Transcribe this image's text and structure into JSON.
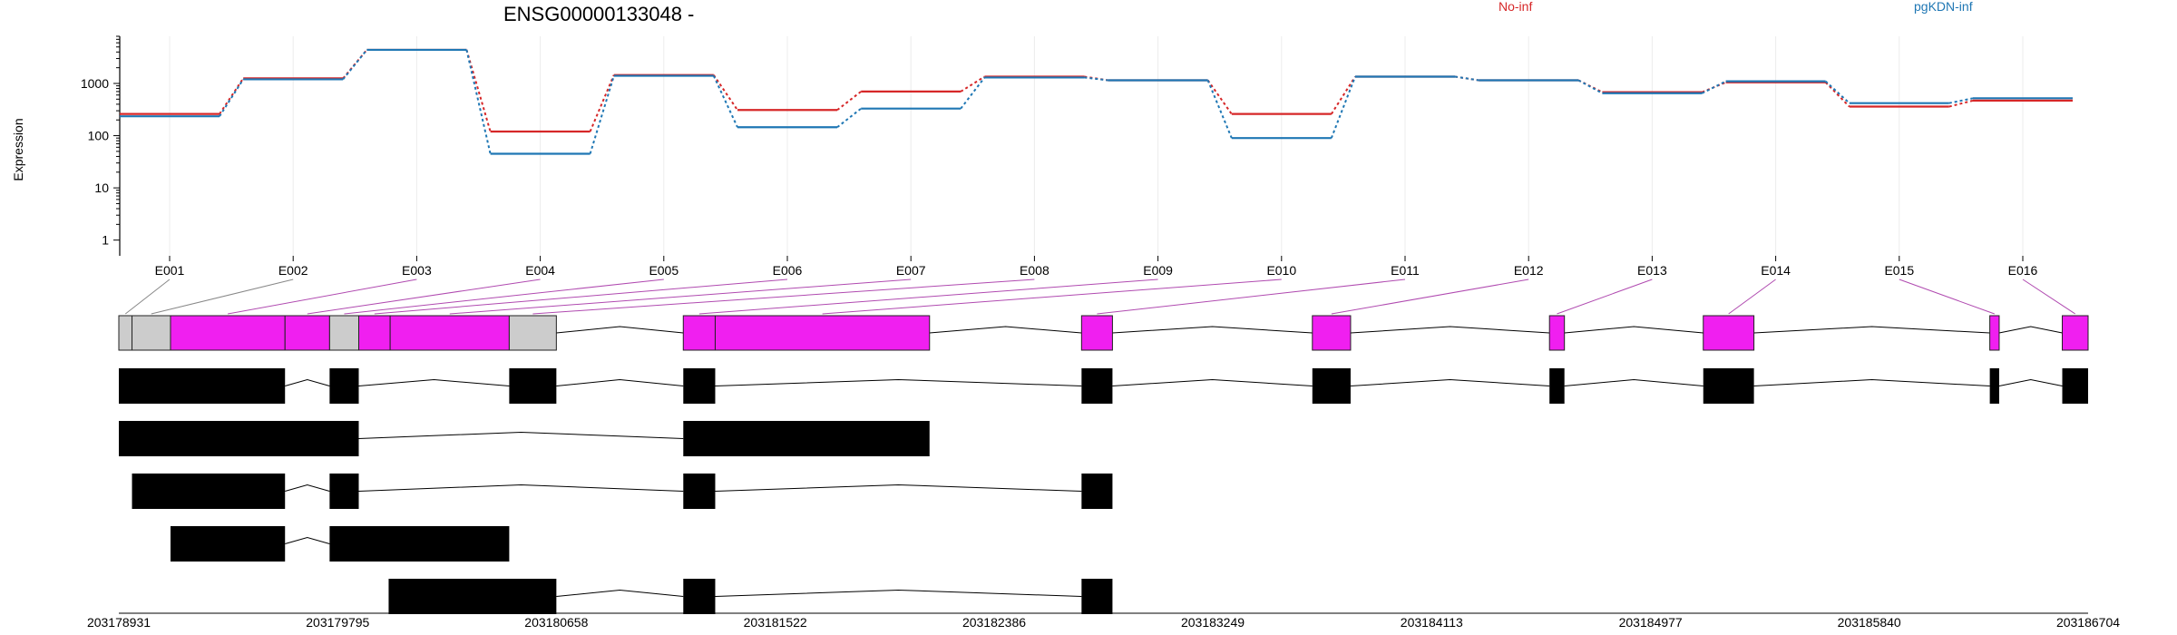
{
  "chart_data": {
    "type": "line",
    "title": "ENSG00000133048 -",
    "ylabel": "Expression",
    "yscale": "log",
    "yticks": [
      1,
      10,
      100,
      1000
    ],
    "ylim": [
      0.5,
      8000
    ],
    "grid": true,
    "legend_placement": "top",
    "exons": [
      "E001",
      "E002",
      "E003",
      "E004",
      "E005",
      "E006",
      "E007",
      "E008",
      "E009",
      "E010",
      "E011",
      "E012",
      "E013",
      "E014",
      "E015",
      "E016"
    ],
    "series": [
      {
        "name": "No-inf",
        "color": "#d62728",
        "values": [
          260,
          1250,
          4400,
          120,
          1450,
          310,
          700,
          1350,
          1150,
          260,
          1350,
          1150,
          680,
          1050,
          360,
          470
        ]
      },
      {
        "name": "pgKDN-inf",
        "color": "#1f77b4",
        "values": [
          235,
          1200,
          4400,
          45,
          1400,
          145,
          330,
          1300,
          1150,
          90,
          1350,
          1150,
          650,
          1100,
          420,
          520
        ]
      }
    ],
    "genomic_ticks": [
      "203178931",
      "203179795",
      "203180658",
      "203181522",
      "203182386",
      "203183249",
      "203184113",
      "203184977",
      "203185840",
      "203186704"
    ],
    "genomic_range": [
      203178931,
      203186704
    ],
    "exon_model": {
      "fill": "#f01ff0",
      "gray_fill": "#cccccc",
      "segments": [
        {
          "start": 203178931,
          "end": 203178983,
          "gray": true
        },
        {
          "start": 203178983,
          "end": 203179135,
          "gray": true
        },
        {
          "start": 203179135,
          "end": 203179587,
          "gray": false
        },
        {
          "start": 203179587,
          "end": 203179763,
          "gray": false
        },
        {
          "start": 203179763,
          "end": 203179878,
          "gray": true
        },
        {
          "start": 203179878,
          "end": 203180002,
          "gray": false
        },
        {
          "start": 203180002,
          "end": 203180472,
          "gray": false
        },
        {
          "start": 203180472,
          "end": 203180658,
          "gray": true
        },
        {
          "start": 203181159,
          "end": 203181285,
          "gray": false
        },
        {
          "start": 203181285,
          "end": 203182131,
          "gray": false
        },
        {
          "start": 203182731,
          "end": 203182853,
          "gray": false
        },
        {
          "start": 203183642,
          "end": 203183793,
          "gray": false
        },
        {
          "start": 203184578,
          "end": 203184637,
          "gray": false
        },
        {
          "start": 203185185,
          "end": 203185385,
          "gray": false
        },
        {
          "start": 203186316,
          "end": 203186353,
          "gray": false
        },
        {
          "start": 203186602,
          "end": 203186704,
          "gray": false
        }
      ],
      "exon_links": [
        0,
        2,
        5,
        7,
        9,
        12,
        15,
        17,
        18,
        22,
        23,
        26,
        28,
        30,
        32,
        33
      ]
    },
    "transcripts": [
      [
        [
          203178931,
          203179587
        ],
        [
          203179763,
          203179878
        ],
        [
          203180472,
          203180658
        ],
        [
          203181159,
          203181285
        ],
        [
          203182731,
          203182853
        ],
        [
          203183642,
          203183793
        ],
        [
          203184578,
          203184637
        ],
        [
          203185185,
          203185385
        ],
        [
          203186316,
          203186353
        ],
        [
          203186602,
          203186704
        ]
      ],
      [
        [
          203178931,
          203179878
        ],
        [
          203181159,
          203182131
        ]
      ],
      [
        [
          203178983,
          203179587
        ],
        [
          203179763,
          203179878
        ],
        [
          203181159,
          203181285
        ],
        [
          203182731,
          203182853
        ]
      ],
      [
        [
          203179135,
          203179587
        ],
        [
          203179763,
          203180472
        ]
      ],
      [
        [
          203179996,
          203180658
        ],
        [
          203181159,
          203181285
        ],
        [
          203182731,
          203182853
        ]
      ]
    ]
  }
}
